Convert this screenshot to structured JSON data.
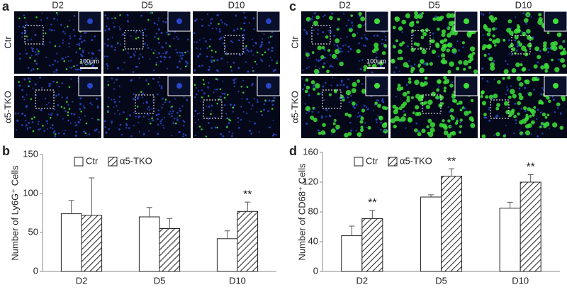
{
  "panels": [
    {
      "letter": "a",
      "columns": [
        "D2",
        "D5",
        "D10"
      ],
      "rows": [
        "Ctr",
        "α5-TKO"
      ],
      "scale_bar": "100μm"
    },
    {
      "letter": "c",
      "columns": [
        "D2",
        "D5",
        "D10"
      ],
      "rows": [
        "Ctr",
        "α5-TKO"
      ],
      "scale_bar": "100μm"
    }
  ],
  "chart_data": [
    {
      "type": "bar",
      "panel_label": "b",
      "y_label": "Number of Ly6G⁺ Cells",
      "categories": [
        "D2",
        "D5",
        "D10"
      ],
      "series": [
        {
          "name": "Ctr",
          "color": "#ffffff",
          "hatch": false,
          "values": [
            74,
            70,
            42
          ],
          "errors": [
            17,
            12,
            10
          ]
        },
        {
          "name": "α5-TKO",
          "color": "#ffffff",
          "hatch": true,
          "values": [
            72,
            55,
            77
          ],
          "errors": [
            48,
            13,
            12
          ],
          "annotations": [
            null,
            null,
            "**"
          ]
        }
      ],
      "ylim": [
        0,
        150
      ],
      "yticks": [
        0,
        50,
        100,
        150
      ],
      "grid": false
    },
    {
      "type": "bar",
      "panel_label": "d",
      "y_label": "Number of CD68⁺ Cells",
      "categories": [
        "D2",
        "D5",
        "D10"
      ],
      "series": [
        {
          "name": "Ctr",
          "color": "#ffffff",
          "hatch": false,
          "values": [
            48,
            100,
            85
          ],
          "errors": [
            13,
            3,
            8
          ]
        },
        {
          "name": "α5-TKO",
          "color": "#ffffff",
          "hatch": true,
          "values": [
            71,
            128,
            120
          ],
          "errors": [
            11,
            10,
            10
          ],
          "annotations": [
            "**",
            "**",
            "**"
          ]
        }
      ],
      "ylim": [
        0,
        160
      ],
      "yticks": [
        0,
        40,
        80,
        120,
        160
      ],
      "grid": false
    }
  ]
}
